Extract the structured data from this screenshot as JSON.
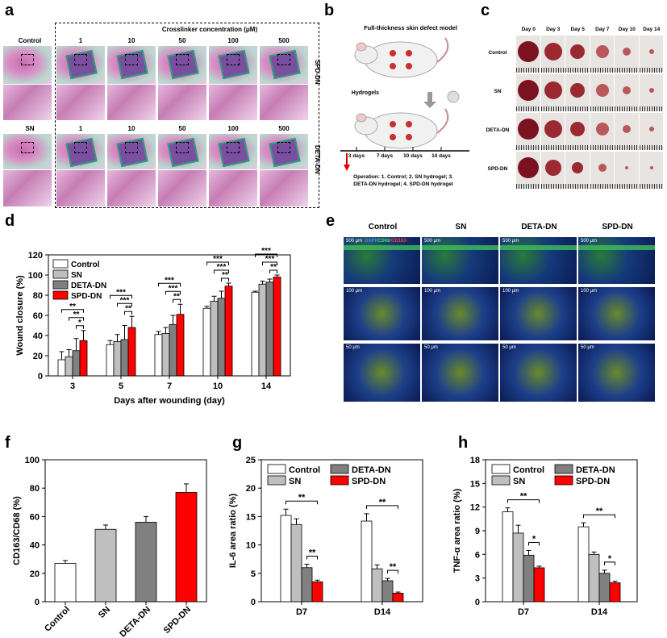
{
  "panel_labels": [
    "a",
    "b",
    "c",
    "d",
    "e",
    "f",
    "g",
    "h"
  ],
  "panel_a": {
    "header": "Crosslinker concentration (μM)",
    "control_label": "Control",
    "sn_label": "SN",
    "concentrations": [
      "1",
      "10",
      "50",
      "100",
      "500"
    ],
    "row_label_top": "SPD-DN",
    "row_label_bottom": "DETA-DN"
  },
  "panel_b": {
    "title": "Full-thickness skin defect model",
    "hydrogels_label": "Hydrogels",
    "timeline": [
      "3 days",
      "7 days",
      "10 days",
      "14 days"
    ],
    "operation_text": "Operation: 1. Control; 2. SN hydrogel; 3. DETA-DN hydrogel; 4. SPD-DN hydrogel",
    "operation_line1": "Operation: 1. Control; 2. SN hydrogel; 3.",
    "operation_line2": "DETA-DN hydrogel; 4. SPD-DN hydrogel"
  },
  "panel_c": {
    "days": [
      "Day 0",
      "Day 3",
      "Day 5",
      "Day 7",
      "Day 10",
      "Day 14"
    ],
    "groups": [
      "Control",
      "SN",
      "DETA-DN",
      "SPD-DN"
    ]
  },
  "panel_e": {
    "columns": [
      "Control",
      "SN",
      "DETA-DN",
      "SPD-DN"
    ],
    "stain_dapi": "DAPI/",
    "stain_cd68": "CD68",
    "stain_cd163": "/CD163",
    "scales": [
      "500 μm",
      "100 μm",
      "50 μm"
    ]
  },
  "colors": {
    "control": "#ffffff",
    "sn": "#bfbfbf",
    "deta": "#808080",
    "spd": "#ff0000"
  },
  "chart_data": [
    {
      "id": "d",
      "type": "bar",
      "xlabel": "Days after wounding (day)",
      "ylabel": "Wound closure (%)",
      "ylim": [
        0,
        120
      ],
      "yticks": [
        "0",
        "20",
        "40",
        "60",
        "80",
        "100",
        "120"
      ],
      "categories": [
        "3",
        "5",
        "7",
        "10",
        "14"
      ],
      "legend_position": "top-left",
      "series": [
        {
          "name": "Control",
          "values": [
            16,
            31,
            41,
            67,
            83
          ],
          "errors": [
            8,
            4,
            3,
            2,
            1
          ]
        },
        {
          "name": "SN",
          "values": [
            19,
            34,
            42,
            74,
            91
          ],
          "errors": [
            7,
            7,
            6,
            5,
            3
          ]
        },
        {
          "name": "DETA-DN",
          "values": [
            25,
            36,
            51,
            77,
            93
          ],
          "errors": [
            12,
            14,
            9,
            7,
            3
          ]
        },
        {
          "name": "SPD-DN",
          "values": [
            35,
            48,
            61,
            89,
            98
          ],
          "errors": [
            10,
            11,
            10,
            3,
            2
          ]
        }
      ],
      "significance": [
        {
          "cat": 0,
          "marks": [
            "**",
            "**",
            "*"
          ]
        },
        {
          "cat": 1,
          "marks": [
            "***",
            "***",
            "**"
          ]
        },
        {
          "cat": 2,
          "marks": [
            "***",
            "***",
            "**"
          ]
        },
        {
          "cat": 3,
          "marks": [
            "***",
            "***",
            "**"
          ]
        },
        {
          "cat": 4,
          "marks": [
            "***",
            "***",
            "**"
          ]
        }
      ]
    },
    {
      "id": "f",
      "type": "bar",
      "ylabel": "CD163/CD68 (%)",
      "ylim": [
        0,
        100
      ],
      "yticks": [
        "0",
        "20",
        "40",
        "60",
        "80",
        "100"
      ],
      "categories": [
        "Control",
        "SN",
        "DETA-DN",
        "SPD-DN"
      ],
      "values": [
        27,
        51,
        56,
        77
      ],
      "errors": [
        2,
        3,
        4,
        6
      ]
    },
    {
      "id": "g",
      "type": "bar",
      "ylabel": "IL-6 area ratio (%)",
      "ylim": [
        0,
        25
      ],
      "yticks": [
        "0",
        "5",
        "10",
        "15",
        "20",
        "25"
      ],
      "categories": [
        "D7",
        "D14"
      ],
      "legend_position": "top",
      "series": [
        {
          "name": "Control",
          "values": [
            15.2,
            14.2
          ],
          "errors": [
            1.1,
            1.3
          ]
        },
        {
          "name": "SN",
          "values": [
            13.6,
            5.8
          ],
          "errors": [
            1.0,
            0.7
          ]
        },
        {
          "name": "DETA-DN",
          "values": [
            6.0,
            3.7
          ],
          "errors": [
            0.6,
            0.4
          ]
        },
        {
          "name": "SPD-DN",
          "values": [
            3.5,
            1.5
          ],
          "errors": [
            0.3,
            0.2
          ]
        }
      ],
      "significance": [
        {
          "cat": 0,
          "from": 0,
          "to": 3,
          "mark": "**"
        },
        {
          "cat": 0,
          "from": 2,
          "to": 3,
          "mark": "**"
        },
        {
          "cat": 1,
          "from": 0,
          "to": 3,
          "mark": "**"
        },
        {
          "cat": 1,
          "from": 2,
          "to": 3,
          "mark": "**"
        }
      ]
    },
    {
      "id": "h",
      "type": "bar",
      "ylabel": "TNF-α area ratio (%)",
      "ylim": [
        0,
        18
      ],
      "yticks": [
        "0",
        "3",
        "6",
        "9",
        "12",
        "15",
        "18"
      ],
      "categories": [
        "D7",
        "D14"
      ],
      "legend_position": "top",
      "series": [
        {
          "name": "Control",
          "values": [
            11.4,
            9.5
          ],
          "errors": [
            0.5,
            0.5
          ]
        },
        {
          "name": "SN",
          "values": [
            8.7,
            6.0
          ],
          "errors": [
            1.0,
            0.3
          ]
        },
        {
          "name": "DETA-DN",
          "values": [
            5.9,
            3.6
          ],
          "errors": [
            0.6,
            0.4
          ]
        },
        {
          "name": "SPD-DN",
          "values": [
            4.3,
            2.4
          ],
          "errors": [
            0.2,
            0.2
          ]
        }
      ],
      "significance": [
        {
          "cat": 0,
          "from": 0,
          "to": 3,
          "mark": "**"
        },
        {
          "cat": 0,
          "from": 2,
          "to": 3,
          "mark": "*"
        },
        {
          "cat": 1,
          "from": 0,
          "to": 3,
          "mark": "**"
        },
        {
          "cat": 1,
          "from": 2,
          "to": 3,
          "mark": "*"
        }
      ]
    }
  ]
}
